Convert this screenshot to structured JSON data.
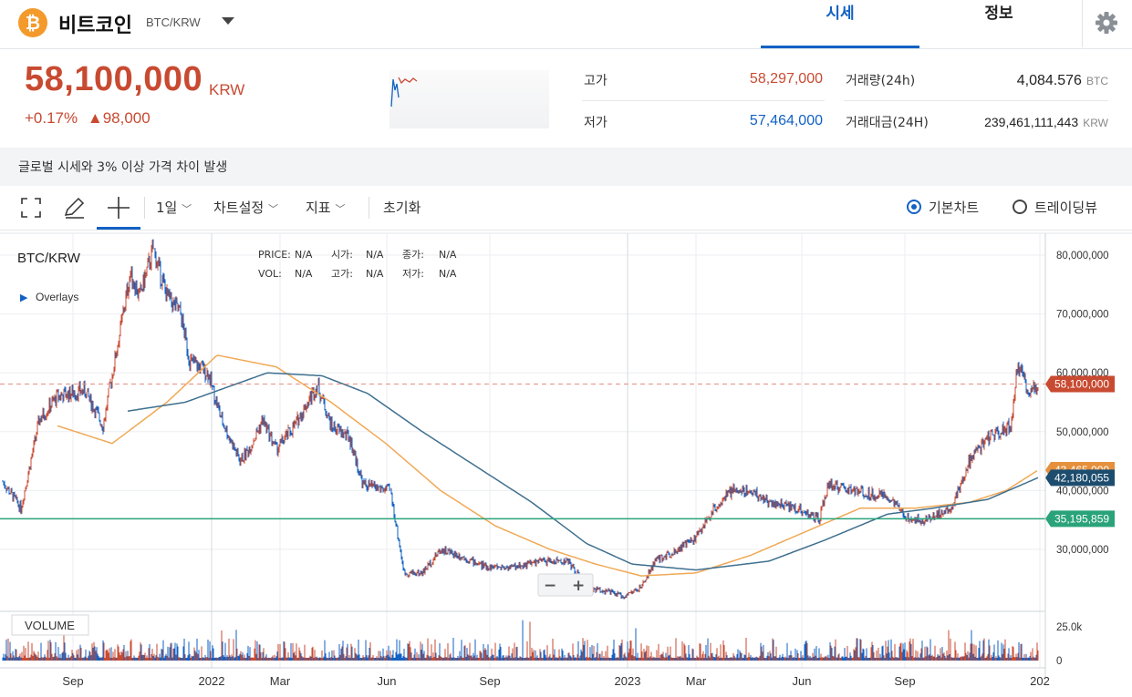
{
  "header": {
    "coin_icon": "bitcoin-icon",
    "coin_symbol": "₿",
    "coin_name": "비트코인",
    "pair": "BTC/KRW",
    "tabs": [
      {
        "label": "시세",
        "active": true
      },
      {
        "label": "정보",
        "active": false
      }
    ]
  },
  "ticker": {
    "price": "58,100,000",
    "unit": "KRW",
    "change_pct": "+0.17%",
    "change_abs": "▲98,000",
    "high_label": "고가",
    "high_value": "58,297,000",
    "low_label": "저가",
    "low_value": "57,464,000",
    "volume_label": "거래량(24h)",
    "volume_value": "4,084.576",
    "volume_unit": "BTC",
    "amount_label": "거래대금(24H)",
    "amount_value": "239,461,111,443",
    "amount_unit": "KRW"
  },
  "notice": "글로벌 시세와 3% 이상 가격 차이 발생",
  "toolbar": {
    "interval": "1일",
    "chart_settings": "차트설정",
    "indicators": "지표",
    "reset": "초기화",
    "basic_chart": "기본차트",
    "tradingview": "트레이딩뷰"
  },
  "chart_header": {
    "pair": "BTC/KRW",
    "overlays": "Overlays",
    "price_label": "PRICE:",
    "price_val": "N/A",
    "open_label": "시가:",
    "open_val": "N/A",
    "close_label": "종가:",
    "close_val": "N/A",
    "vol_label": "VOL:",
    "vol_val": "N/A",
    "high_label": "고가:",
    "high_val": "N/A",
    "low_label": "저가:",
    "low_val": "N/A",
    "volume_pane": "VOLUME"
  },
  "colors": {
    "up": "#c84a31",
    "down": "#1261c4",
    "ma_short": "#f0a957",
    "ma_long": "#3f6f8f",
    "level": "#2aa37a"
  },
  "chart_data": {
    "type": "line",
    "y_ticks": [
      "80,000,000",
      "70,000,000",
      "60,000,000",
      "50,000,000",
      "40,000,000",
      "30,000,000"
    ],
    "x_ticks": [
      "Sep",
      "2022",
      "Mar",
      "Jun",
      "Sep",
      "2023",
      "Mar",
      "Jun",
      "Sep",
      "202"
    ],
    "vol_ticks": [
      "25.0k",
      "0"
    ],
    "series": [
      {
        "values": [
          [
            0,
            41500000
          ],
          [
            20,
            37000000
          ],
          [
            40,
            52000000
          ],
          [
            60,
            56000000
          ],
          [
            90,
            57000000
          ],
          [
            110,
            51000000
          ],
          [
            125,
            64000000
          ],
          [
            140,
            77000000
          ],
          [
            150,
            73000000
          ],
          [
            165,
            81000000
          ],
          [
            180,
            73000000
          ],
          [
            195,
            70000000
          ],
          [
            205,
            62000000
          ],
          [
            225,
            60000000
          ],
          [
            240,
            52000000
          ],
          [
            260,
            45000000
          ],
          [
            270,
            47000000
          ],
          [
            285,
            52000000
          ],
          [
            300,
            47000000
          ],
          [
            320,
            51000000
          ],
          [
            345,
            58000000
          ],
          [
            360,
            51000000
          ],
          [
            380,
            49000000
          ],
          [
            395,
            41000000
          ],
          [
            425,
            40000000
          ],
          [
            440,
            26000000
          ],
          [
            460,
            26000000
          ],
          [
            480,
            30000000
          ],
          [
            500,
            29000000
          ],
          [
            530,
            27000000
          ],
          [
            560,
            27000000
          ],
          [
            590,
            28000000
          ],
          [
            620,
            28000000
          ],
          [
            640,
            23500000
          ],
          [
            660,
            23000000
          ],
          [
            680,
            22000000
          ],
          [
            700,
            23500000
          ],
          [
            715,
            28000000
          ],
          [
            740,
            30000000
          ],
          [
            760,
            32000000
          ],
          [
            780,
            37000000
          ],
          [
            800,
            40000000
          ],
          [
            820,
            40000000
          ],
          [
            840,
            38000000
          ],
          [
            870,
            37000000
          ],
          [
            895,
            35000000
          ],
          [
            905,
            41000000
          ],
          [
            930,
            40000000
          ],
          [
            970,
            39000000
          ],
          [
            990,
            35500000
          ],
          [
            1010,
            35000000
          ],
          [
            1040,
            37000000
          ],
          [
            1060,
            45000000
          ],
          [
            1080,
            49000000
          ],
          [
            1105,
            51000000
          ],
          [
            1112,
            61000000
          ],
          [
            1125,
            57000000
          ],
          [
            1135,
            58100000
          ]
        ]
      },
      {
        "values": [
          [
            60,
            51000000
          ],
          [
            120,
            48000000
          ],
          [
            180,
            55000000
          ],
          [
            235,
            63000000
          ],
          [
            300,
            61000000
          ],
          [
            360,
            55000000
          ],
          [
            420,
            48000000
          ],
          [
            480,
            40000000
          ],
          [
            540,
            34000000
          ],
          [
            600,
            30000000
          ],
          [
            650,
            27500000
          ],
          [
            700,
            25500000
          ],
          [
            760,
            26000000
          ],
          [
            820,
            29000000
          ],
          [
            880,
            33000000
          ],
          [
            940,
            37000000
          ],
          [
            1000,
            37000000
          ],
          [
            1060,
            38000000
          ],
          [
            1100,
            40000000
          ],
          [
            1135,
            43465000
          ]
        ]
      },
      {
        "values": [
          [
            137,
            53500000
          ],
          [
            200,
            55000000
          ],
          [
            290,
            60000000
          ],
          [
            350,
            59500000
          ],
          [
            400,
            56500000
          ],
          [
            460,
            50000000
          ],
          [
            520,
            44000000
          ],
          [
            580,
            38000000
          ],
          [
            640,
            31000000
          ],
          [
            690,
            27500000
          ],
          [
            760,
            26500000
          ],
          [
            840,
            28000000
          ],
          [
            900,
            31500000
          ],
          [
            970,
            36000000
          ],
          [
            1020,
            37000000
          ],
          [
            1080,
            38500000
          ],
          [
            1135,
            42180055
          ]
        ]
      }
    ],
    "current_price": "58,100,000",
    "ma_short_value": "43,465,000",
    "ma_long_value": "42,180,055",
    "level_value": "35,195,859"
  }
}
